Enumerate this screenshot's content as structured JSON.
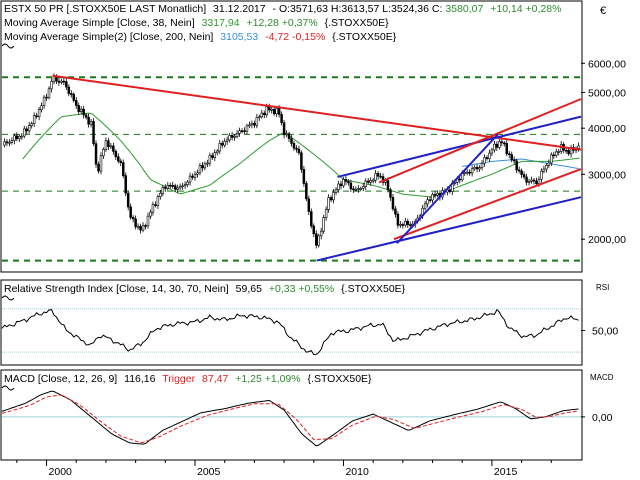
{
  "header": {
    "main": {
      "symbol": "ESTX 50 PR [.STOXX50E LAST Monatlich]",
      "date": "31.12.2017",
      "ohlc_prefix": "- O:3571,63 H:3613,57 L:3524,36 C:",
      "close": "3580,07",
      "change": "+10,14 +0,28%",
      "close_color": "#2e8b2e"
    },
    "ma38": {
      "label": "Moving Average Simple [Close, 38, Nein]",
      "value": "3317,94",
      "change": "+12,28 +0,37%",
      "suffix": "{.STOXX50E}"
    },
    "ma200": {
      "label": "Moving Average Simple(2) [Close, 200, Nein]",
      "value": "3105,53",
      "change": "-4,72 -0,15%",
      "suffix": "{.STOXX50E}"
    },
    "rsi": {
      "label": "Relative Strength Index [Close, 14, 30, 70, Nein]",
      "value": "59,65",
      "change": "+0,33 +0,55%",
      "suffix": "{.STOXX50E}"
    },
    "macd": {
      "label": "MACD [Close, 12, 26, 9]",
      "value": "116,16",
      "trigger_label": "Trigger",
      "trigger_value": "87,47",
      "change": "+1,25 +1,09%",
      "suffix": "{.STOXX50E}"
    }
  },
  "currency_symbol": "€",
  "panel_labels": {
    "rsi": "RSI",
    "macd": "MACD"
  },
  "colors": {
    "candle_up": "#ffffff",
    "candle_down": "#000000",
    "ma38": "#2e9b2e",
    "ma200": "#3a8fd6",
    "trend_red": "#e02020",
    "trend_blue": "#2020c8",
    "support_green": "#1a7a1a",
    "negative": "#e02020",
    "positive": "#2e8b2e",
    "trigger": "#e02020",
    "grid": "#9ad0d6"
  },
  "chart_data": [
    {
      "type": "candlestick",
      "title": "ESTX 50 PR [.STOXX50E LAST Monatlich]",
      "scale": "log",
      "y_ticks": [
        "6000,00",
        "5000,00",
        "4000,00",
        "3000,00",
        "2000,00"
      ],
      "y_tick_values": [
        6000,
        5000,
        4000,
        3000,
        2000
      ],
      "x_tick_labels": [
        "2000",
        "2005",
        "2010",
        "2015"
      ],
      "x_tick_years": [
        2000,
        2005,
        2010,
        2015
      ],
      "x_range": [
        1998.5,
        2018.0
      ],
      "y_range": [
        1650,
        6600
      ],
      "grid": false,
      "anchors": [
        [
          1998.5,
          3600
        ],
        [
          1999.2,
          3850
        ],
        [
          1999.6,
          4250
        ],
        [
          2000.0,
          4900
        ],
        [
          2000.2,
          5460
        ],
        [
          2000.6,
          5300
        ],
        [
          2001.0,
          4600
        ],
        [
          2001.5,
          4100
        ],
        [
          2001.7,
          3000
        ],
        [
          2002.0,
          3700
        ],
        [
          2002.5,
          3200
        ],
        [
          2002.8,
          2300
        ],
        [
          2003.2,
          2100
        ],
        [
          2003.7,
          2550
        ],
        [
          2004.0,
          2800
        ],
        [
          2004.5,
          2750
        ],
        [
          2004.9,
          2950
        ],
        [
          2005.5,
          3300
        ],
        [
          2006.0,
          3700
        ],
        [
          2006.5,
          3900
        ],
        [
          2007.0,
          4150
        ],
        [
          2007.4,
          4500
        ],
        [
          2007.8,
          4450
        ],
        [
          2008.0,
          3900
        ],
        [
          2008.5,
          3400
        ],
        [
          2008.8,
          2400
        ],
        [
          2009.1,
          1900
        ],
        [
          2009.5,
          2550
        ],
        [
          2010.0,
          2900
        ],
        [
          2010.4,
          2700
        ],
        [
          2010.8,
          2850
        ],
        [
          2011.2,
          3000
        ],
        [
          2011.5,
          2750
        ],
        [
          2011.8,
          2200
        ],
        [
          2012.4,
          2200
        ],
        [
          2012.9,
          2600
        ],
        [
          2013.5,
          2700
        ],
        [
          2014.0,
          3000
        ],
        [
          2014.6,
          3150
        ],
        [
          2015.0,
          3500
        ],
        [
          2015.3,
          3700
        ],
        [
          2015.7,
          3250
        ],
        [
          2016.1,
          2900
        ],
        [
          2016.5,
          2850
        ],
        [
          2016.9,
          3250
        ],
        [
          2017.3,
          3550
        ],
        [
          2017.6,
          3450
        ],
        [
          2017.95,
          3580
        ]
      ],
      "ma38_anchors": [
        [
          1999.2,
          3300
        ],
        [
          2000.5,
          4300
        ],
        [
          2001.5,
          4400
        ],
        [
          2002.5,
          3700
        ],
        [
          2003.5,
          2900
        ],
        [
          2004.5,
          2650
        ],
        [
          2005.5,
          2800
        ],
        [
          2006.5,
          3200
        ],
        [
          2007.5,
          3700
        ],
        [
          2008.0,
          3900
        ],
        [
          2009.0,
          3400
        ],
        [
          2010.0,
          2900
        ],
        [
          2011.0,
          2800
        ],
        [
          2012.0,
          2650
        ],
        [
          2013.0,
          2600
        ],
        [
          2014.0,
          2800
        ],
        [
          2015.0,
          3000
        ],
        [
          2016.0,
          3250
        ],
        [
          2017.0,
          3250
        ],
        [
          2017.95,
          3318
        ]
      ],
      "ma200_anchors": [
        [
          2014.0,
          3150
        ],
        [
          2015.0,
          3250
        ],
        [
          2016.0,
          3300
        ],
        [
          2017.0,
          3200
        ],
        [
          2017.95,
          3106
        ]
      ],
      "support_lines": [
        5500,
        3850,
        2700,
        1750
      ],
      "trend_lines": [
        {
          "color": "red",
          "from": [
            2000.2,
            5550
          ],
          "to": [
            2018.0,
            3500
          ]
        },
        {
          "color": "blue",
          "from": [
            2009.1,
            1750
          ],
          "to": [
            2018.0,
            2600
          ]
        },
        {
          "color": "blue",
          "from": [
            2009.8,
            2950
          ],
          "to": [
            2018.0,
            4300
          ]
        },
        {
          "color": "red",
          "from": [
            2011.7,
            2000
          ],
          "to": [
            2018.0,
            3100
          ]
        },
        {
          "color": "red",
          "from": [
            2011.2,
            2850
          ],
          "to": [
            2018.0,
            4800
          ]
        },
        {
          "color": "blue",
          "from": [
            2011.8,
            1950
          ],
          "to": [
            2015.2,
            3850
          ]
        }
      ]
    },
    {
      "type": "line",
      "title": "Relative Strength Index [Close, 14, 30, 70, Nein]",
      "y_range": [
        20,
        80
      ],
      "y_ticks": [
        "50,00"
      ],
      "y_tick_values": [
        50
      ],
      "levels": [
        70,
        30
      ],
      "anchors": [
        [
          1998.5,
          52
        ],
        [
          1999.3,
          60
        ],
        [
          1999.8,
          66
        ],
        [
          2000.2,
          68
        ],
        [
          2000.6,
          52
        ],
        [
          2001.0,
          44
        ],
        [
          2001.5,
          36
        ],
        [
          2001.8,
          46
        ],
        [
          2002.3,
          40
        ],
        [
          2002.8,
          32
        ],
        [
          2003.2,
          38
        ],
        [
          2003.7,
          52
        ],
        [
          2004.3,
          56
        ],
        [
          2005.0,
          58
        ],
        [
          2005.5,
          62
        ],
        [
          2006.0,
          60
        ],
        [
          2006.6,
          64
        ],
        [
          2007.3,
          62
        ],
        [
          2007.8,
          58
        ],
        [
          2008.2,
          44
        ],
        [
          2008.8,
          30
        ],
        [
          2009.1,
          28
        ],
        [
          2009.6,
          48
        ],
        [
          2010.2,
          50
        ],
        [
          2010.8,
          54
        ],
        [
          2011.3,
          56
        ],
        [
          2011.7,
          40
        ],
        [
          2012.2,
          44
        ],
        [
          2012.8,
          50
        ],
        [
          2013.5,
          56
        ],
        [
          2014.3,
          60
        ],
        [
          2014.8,
          64
        ],
        [
          2015.2,
          68
        ],
        [
          2015.6,
          52
        ],
        [
          2016.1,
          44
        ],
        [
          2016.5,
          46
        ],
        [
          2017.0,
          54
        ],
        [
          2017.5,
          62
        ],
        [
          2017.95,
          59.65
        ]
      ]
    },
    {
      "type": "line",
      "title": "MACD [Close, 12, 26, 9]",
      "y_range": [
        -600,
        450
      ],
      "y_ticks": [
        "0,00"
      ],
      "y_tick_values": [
        0
      ],
      "series": [
        {
          "name": "MACD",
          "anchors": [
            [
              1998.5,
              80
            ],
            [
              1999.3,
              200
            ],
            [
              1999.8,
              320
            ],
            [
              2000.2,
              380
            ],
            [
              2000.8,
              250
            ],
            [
              2001.5,
              0
            ],
            [
              2002.2,
              -250
            ],
            [
              2002.8,
              -380
            ],
            [
              2003.3,
              -400
            ],
            [
              2003.9,
              -200
            ],
            [
              2004.5,
              -80
            ],
            [
              2005.2,
              60
            ],
            [
              2006.0,
              120
            ],
            [
              2006.8,
              200
            ],
            [
              2007.5,
              240
            ],
            [
              2008.0,
              100
            ],
            [
              2008.6,
              -250
            ],
            [
              2009.1,
              -430
            ],
            [
              2009.7,
              -250
            ],
            [
              2010.3,
              -60
            ],
            [
              2011.0,
              40
            ],
            [
              2011.6,
              -80
            ],
            [
              2012.2,
              -200
            ],
            [
              2012.9,
              -60
            ],
            [
              2013.8,
              40
            ],
            [
              2014.5,
              110
            ],
            [
              2015.3,
              220
            ],
            [
              2015.8,
              120
            ],
            [
              2016.3,
              -30
            ],
            [
              2016.8,
              0
            ],
            [
              2017.4,
              90
            ],
            [
              2017.95,
              116.16
            ]
          ]
        },
        {
          "name": "Trigger",
          "anchors": [
            [
              1998.5,
              50
            ],
            [
              1999.4,
              160
            ],
            [
              2000.0,
              290
            ],
            [
              2000.5,
              320
            ],
            [
              2001.1,
              180
            ],
            [
              2001.8,
              -60
            ],
            [
              2002.5,
              -280
            ],
            [
              2003.2,
              -380
            ],
            [
              2003.8,
              -290
            ],
            [
              2004.6,
              -120
            ],
            [
              2005.4,
              20
            ],
            [
              2006.2,
              110
            ],
            [
              2007.0,
              190
            ],
            [
              2007.8,
              190
            ],
            [
              2008.4,
              -30
            ],
            [
              2009.0,
              -330
            ],
            [
              2009.6,
              -320
            ],
            [
              2010.3,
              -120
            ],
            [
              2011.1,
              10
            ],
            [
              2011.7,
              -40
            ],
            [
              2012.4,
              -170
            ],
            [
              2013.0,
              -100
            ],
            [
              2013.9,
              0
            ],
            [
              2014.7,
              80
            ],
            [
              2015.4,
              180
            ],
            [
              2016.0,
              110
            ],
            [
              2016.5,
              -10
            ],
            [
              2017.0,
              10
            ],
            [
              2017.5,
              60
            ],
            [
              2017.95,
              87.47
            ]
          ]
        }
      ]
    }
  ]
}
